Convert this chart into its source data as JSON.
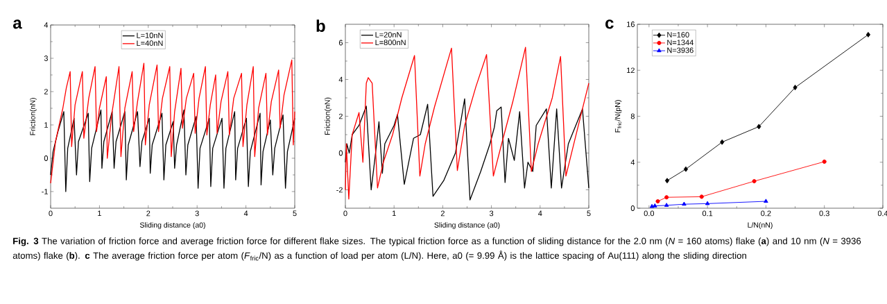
{
  "chart_data": [
    {
      "type": "line",
      "title": "a",
      "xlabel": "Sliding distance (a0)",
      "ylabel": "Friction(nN)",
      "xlim": [
        0,
        5
      ],
      "ylim": [
        -1.5,
        4
      ],
      "xticks": [
        0,
        1,
        2,
        3,
        4,
        5
      ],
      "yticks": [
        -1,
        0,
        1,
        2,
        3,
        4
      ],
      "legend": "top",
      "series": [
        {
          "name": "L=10nN",
          "color": "#000000",
          "x": [
            0,
            0.05,
            0.15,
            0.27,
            0.31,
            0.35,
            0.48,
            0.53,
            0.57,
            0.77,
            0.8,
            0.84,
            1.03,
            1.05,
            1.09,
            1.26,
            1.3,
            1.34,
            1.52,
            1.55,
            1.59,
            1.78,
            1.83,
            1.87,
            2.02,
            2.04,
            2.08,
            2.28,
            2.32,
            2.36,
            2.51,
            2.54,
            2.58,
            2.73,
            2.77,
            2.81,
            2.98,
            3.02,
            3.06,
            3.25,
            3.28,
            3.32,
            3.51,
            3.55,
            3.59,
            3.77,
            3.79,
            3.83,
            4.01,
            4.05,
            4.09,
            4.29,
            4.31,
            4.35,
            4.5,
            4.55,
            4.59,
            4.76,
            4.81,
            4.85,
            5.0
          ],
          "values": [
            -0.5,
            0.2,
            0.8,
            1.4,
            -1.0,
            0.3,
            1.2,
            -0.5,
            0.5,
            1.35,
            -0.7,
            0.3,
            1.45,
            -0.3,
            0.5,
            1.4,
            -0.3,
            0.5,
            1.4,
            -0.65,
            0.4,
            1.4,
            -0.25,
            0.5,
            1.2,
            -0.45,
            0.4,
            1.35,
            -0.65,
            0.4,
            1.1,
            -0.3,
            0.4,
            1.45,
            -0.5,
            0.4,
            1.25,
            -0.9,
            0.3,
            1.2,
            -0.85,
            0.3,
            1.2,
            -0.9,
            0.3,
            1.4,
            -0.65,
            0.3,
            1.2,
            -0.85,
            0.2,
            1.35,
            -0.8,
            0.2,
            1.15,
            -0.5,
            0.3,
            1.3,
            -0.9,
            0.2,
            1.2
          ]
        },
        {
          "name": "L=40nN",
          "color": "#ff0000",
          "x": [
            0,
            0.1,
            0.25,
            0.32,
            0.4,
            0.43,
            0.5,
            0.65,
            0.68,
            0.78,
            0.91,
            0.94,
            1.0,
            1.14,
            1.16,
            1.25,
            1.4,
            1.44,
            1.52,
            1.67,
            1.7,
            1.78,
            1.91,
            1.94,
            2.02,
            2.18,
            2.21,
            2.29,
            2.44,
            2.47,
            2.54,
            2.67,
            2.7,
            2.78,
            2.93,
            2.96,
            3.04,
            3.17,
            3.2,
            3.27,
            3.38,
            3.41,
            3.49,
            3.63,
            3.66,
            3.75,
            3.91,
            3.94,
            4.02,
            4.15,
            4.18,
            4.26,
            4.41,
            4.44,
            4.52,
            4.67,
            4.7,
            4.78,
            4.94,
            4.97,
            5.0
          ],
          "values": [
            -0.75,
            0.5,
            1.5,
            2.1,
            2.6,
            0.35,
            1.6,
            2.6,
            0.6,
            1.8,
            2.75,
            0.8,
            1.5,
            2.45,
            0.0,
            1.3,
            2.75,
            0.05,
            1.5,
            2.6,
            0.8,
            1.7,
            2.85,
            0.4,
            1.6,
            2.8,
            0.8,
            1.8,
            2.75,
            0.05,
            1.4,
            2.7,
            0.9,
            1.8,
            2.55,
            0.75,
            1.8,
            2.75,
            0.7,
            1.6,
            2.5,
            0.75,
            1.7,
            2.6,
            0.7,
            1.8,
            2.55,
            0.35,
            1.6,
            2.75,
            0.05,
            1.5,
            2.55,
            0.7,
            1.7,
            2.65,
            0.9,
            1.9,
            2.95,
            0.4,
            1.4
          ]
        }
      ]
    },
    {
      "type": "line",
      "title": "b",
      "xlabel": "Sliding distance (a0)",
      "ylabel": "Friction(nN)",
      "xlim": [
        0,
        5
      ],
      "ylim": [
        -3,
        7
      ],
      "xticks": [
        0,
        1,
        2,
        3,
        4,
        5
      ],
      "yticks": [
        -2,
        0,
        2,
        4,
        6
      ],
      "legend": "top left",
      "series": [
        {
          "name": "L=20nN",
          "color": "#000000",
          "x": [
            0,
            0.03,
            0.08,
            0.14,
            0.28,
            0.43,
            0.53,
            0.62,
            0.69,
            0.76,
            0.81,
            1.0,
            1.07,
            1.21,
            1.4,
            1.54,
            1.69,
            1.8,
            2.02,
            2.26,
            2.45,
            2.56,
            2.78,
            2.97,
            3.06,
            3.11,
            3.2,
            3.28,
            3.35,
            3.47,
            3.58,
            3.68,
            3.75,
            3.85,
            3.92,
            4.13,
            4.23,
            4.34,
            4.44,
            4.58,
            4.87,
            5.0
          ],
          "values": [
            -0.5,
            0.5,
            0.0,
            1.0,
            1.5,
            2.55,
            -2.0,
            0.0,
            1.7,
            -1.1,
            0.5,
            1.5,
            2.1,
            -1.7,
            0.8,
            1.0,
            2.65,
            -2.35,
            -1.5,
            0.0,
            2.95,
            -2.55,
            -1.0,
            0.5,
            1.4,
            2.3,
            2.5,
            -1.6,
            0.8,
            -0.4,
            2.25,
            -1.9,
            -0.5,
            -1.0,
            1.5,
            2.4,
            -1.9,
            2.4,
            -1.9,
            0.5,
            2.4,
            -1.9
          ]
        },
        {
          "name": "L=800nN",
          "color": "#ff0000",
          "x": [
            0,
            0.02,
            0.07,
            0.14,
            0.28,
            0.36,
            0.43,
            0.47,
            0.55,
            0.66,
            0.78,
            0.97,
            1.16,
            1.42,
            1.53,
            1.64,
            1.83,
            2.07,
            2.18,
            2.3,
            2.45,
            2.68,
            2.9,
            3.04,
            3.21,
            3.44,
            3.7,
            3.82,
            3.96,
            4.25,
            4.42,
            4.53,
            4.72,
            5.0
          ],
          "values": [
            -2.0,
            0.5,
            -2.5,
            1.0,
            2.2,
            -0.5,
            3.8,
            4.1,
            3.8,
            -1.9,
            -0.5,
            1.0,
            3.0,
            5.3,
            -1.25,
            0.5,
            2.5,
            4.7,
            5.7,
            -0.95,
            1.5,
            3.6,
            5.35,
            -1.25,
            0.5,
            2.8,
            5.75,
            -1.0,
            0.5,
            3.0,
            5.25,
            -1.25,
            0.8,
            3.8
          ]
        }
      ]
    },
    {
      "type": "line",
      "title": "c",
      "xlabel": "L/N(nN)",
      "ylabel": "F$_{fric}$/N(pN)",
      "xlim": [
        -0.02,
        0.4
      ],
      "ylim": [
        0,
        16
      ],
      "xticks": [
        {
          "value": 0,
          "label": "0.0"
        },
        0.1,
        0.2,
        0.3,
        0.4
      ],
      "yticks": [
        0,
        4,
        8,
        12,
        16
      ],
      "legend": "top left",
      "annotations": [
        "**Fig. 3** The variation of friction force and average friction force for different flake sizes. The typical friction force as a function of sliding distance for the 2.0 nm (*N* = 160 atoms) flake (**a**) and 10 nm (*N* = 3936 atoms) flake (**b**). **c** The average friction force per atom (*F*$_{fric}$/N) as a function of load per atom (L/N). Here, a0 (= 9.99 Å) is the lattice spacing of Au(111) along the sliding direction"
      ],
      "series": [
        {
          "name": "N=160",
          "color": "#000000",
          "marker": "diamond",
          "x": [
            0.031,
            0.063,
            0.125,
            0.188,
            0.25,
            0.375
          ],
          "values": [
            2.4,
            3.4,
            5.75,
            7.1,
            10.5,
            15.1
          ]
        },
        {
          "name": "N=1344",
          "color": "#ff0000",
          "marker": "circle",
          "x": [
            0.015,
            0.03,
            0.09,
            0.18,
            0.3
          ],
          "values": [
            0.6,
            0.95,
            1.0,
            2.35,
            4.05
          ]
        },
        {
          "name": "N=3936",
          "color": "#0000ff",
          "marker": "triangle",
          "x": [
            0.005,
            0.01,
            0.03,
            0.06,
            0.1,
            0.2
          ],
          "values": [
            0.15,
            0.2,
            0.25,
            0.35,
            0.4,
            0.6
          ]
        }
      ]
    }
  ]
}
